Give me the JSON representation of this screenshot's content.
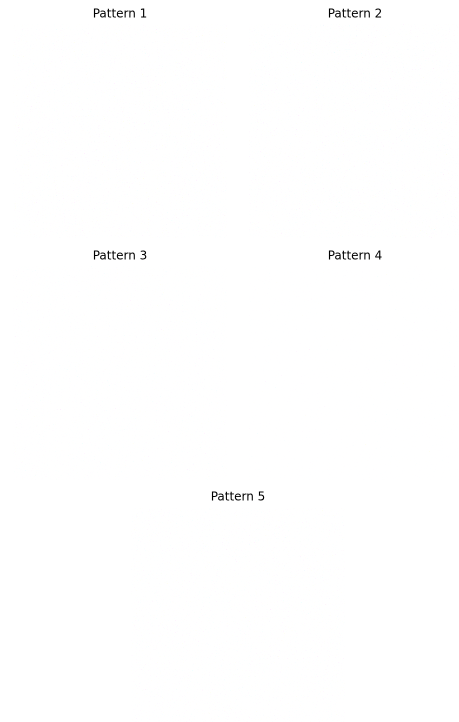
{
  "panels": [
    {
      "title": "Pattern 1"
    },
    {
      "title": "Pattern 2"
    },
    {
      "title": "Pattern 3"
    },
    {
      "title": "Pattern 4"
    },
    {
      "title": "Pattern 5"
    }
  ]
}
